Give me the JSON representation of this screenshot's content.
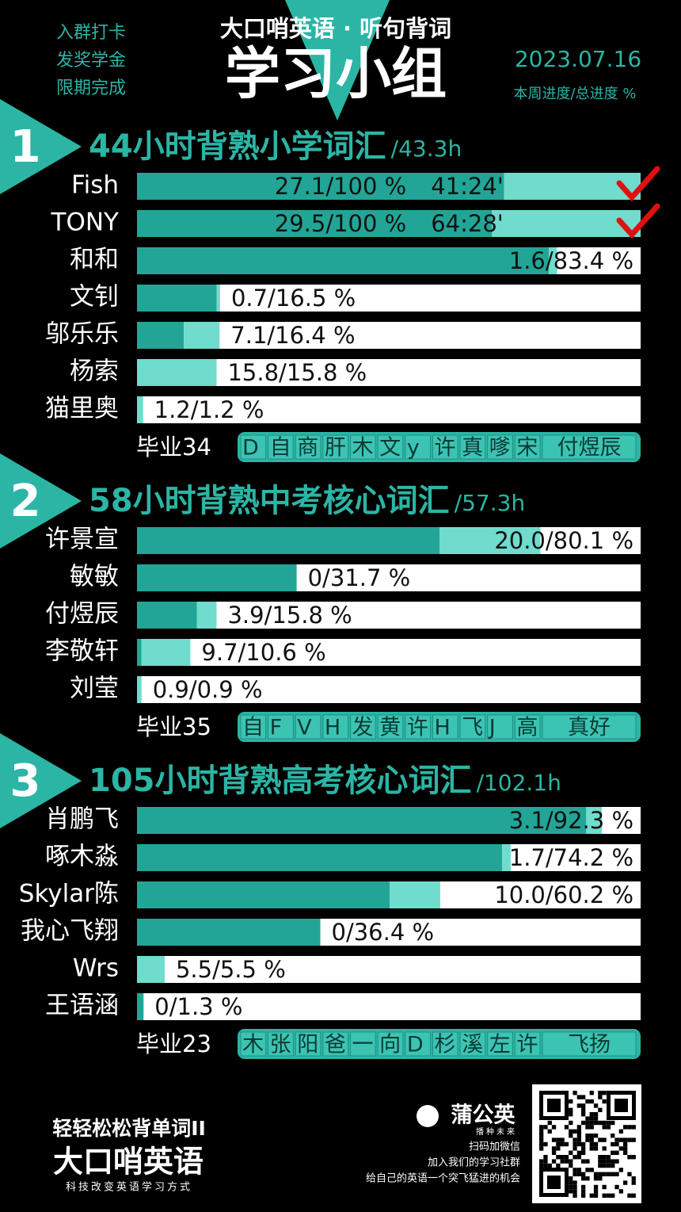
{
  "header": {
    "left_lines": [
      "入群打卡",
      "发奖学金",
      "限期完成"
    ],
    "brand": "大口哨英语 · 听句背词",
    "title": "学习小组",
    "date": "2023.07.16",
    "legend": "本周进度/总进度 %"
  },
  "groups": [
    {
      "number": 1,
      "title": "44小时背熟小学词汇",
      "hours": "/43.3h",
      "members": [
        {
          "name": "Fish",
          "weekly": 27.1,
          "total": 100,
          "label": "27.1/100 %",
          "time": "41:24'",
          "completed": true
        },
        {
          "name": "TONY",
          "weekly": 29.5,
          "total": 100,
          "label": "29.5/100 %",
          "time": "64:28'",
          "completed": true
        },
        {
          "name": "和和",
          "weekly": 1.6,
          "total": 83.4,
          "label": "1.6/83.4 %"
        },
        {
          "name": "文钊",
          "weekly": 0.7,
          "total": 16.5,
          "label": "0.7/16.5 %"
        },
        {
          "name": "邬乐乐",
          "weekly": 7.1,
          "total": 16.4,
          "label": "7.1/16.4 %"
        },
        {
          "name": "杨索",
          "weekly": 15.8,
          "total": 15.8,
          "label": "15.8/15.8 %"
        },
        {
          "name": "猫里奥",
          "weekly": 1.2,
          "total": 1.2,
          "label": "1.2/1.2 %"
        }
      ],
      "graduates_label": "毕业34",
      "graduates": [
        "D",
        "自",
        "商",
        "肝",
        "木",
        "文",
        "y",
        "许",
        "真",
        "嗲",
        "宋",
        "付煜辰"
      ]
    },
    {
      "number": 2,
      "title": "58小时背熟中考核心词汇",
      "hours": "/57.3h",
      "members": [
        {
          "name": "许景宣",
          "weekly": 20.0,
          "total": 80.1,
          "label": "20.0/80.1 %"
        },
        {
          "name": "敏敏",
          "weekly": 0,
          "total": 31.7,
          "label": "0/31.7 %"
        },
        {
          "name": "付煜辰",
          "weekly": 3.9,
          "total": 15.8,
          "label": "3.9/15.8 %"
        },
        {
          "name": "李敬轩",
          "weekly": 9.7,
          "total": 10.6,
          "label": "9.7/10.6 %"
        },
        {
          "name": "刘莹",
          "weekly": 0.9,
          "total": 0.9,
          "label": "0.9/0.9 %"
        }
      ],
      "graduates_label": "毕业35",
      "graduates": [
        "自",
        "F",
        "V",
        "H",
        "发",
        "黄",
        "许",
        "H",
        "飞",
        "J",
        "高",
        "真好"
      ]
    },
    {
      "number": 3,
      "title": "105小时背熟高考核心词汇",
      "hours": "/102.1h",
      "members": [
        {
          "name": "肖鹏飞",
          "weekly": 3.1,
          "total": 92.3,
          "label": "3.1/92.3 %"
        },
        {
          "name": "啄木淼",
          "weekly": 1.7,
          "total": 74.2,
          "label": "1.7/74.2 %"
        },
        {
          "name": "Skylar陈",
          "weekly": 10.0,
          "total": 60.2,
          "label": "10.0/60.2 %"
        },
        {
          "name": "我心飞翔",
          "weekly": 0,
          "total": 36.4,
          "label": "0/36.4 %"
        },
        {
          "name": "Wrs",
          "weekly": 5.5,
          "total": 5.5,
          "label": "5.5/5.5 %"
        },
        {
          "name": "王语涵",
          "weekly": 0,
          "total": 1.3,
          "label": "0/1.3 %"
        }
      ],
      "graduates_label": "毕业23",
      "graduates": [
        "木",
        "张",
        "阳",
        "爸",
        "一",
        "向",
        "D",
        "杉",
        "溪",
        "左",
        "许",
        "飞扬"
      ]
    }
  ],
  "footer": {
    "slogan": "轻轻松松背单词II",
    "brand": "大口哨英语",
    "motto": "科技改变英语学习方式",
    "partner": "蒲公英",
    "partner_sub": "播种未来",
    "lines": [
      "扫码加微信",
      "加入我们的学习社群",
      "给自己的英语一个突飞猛进的机会"
    ]
  }
}
